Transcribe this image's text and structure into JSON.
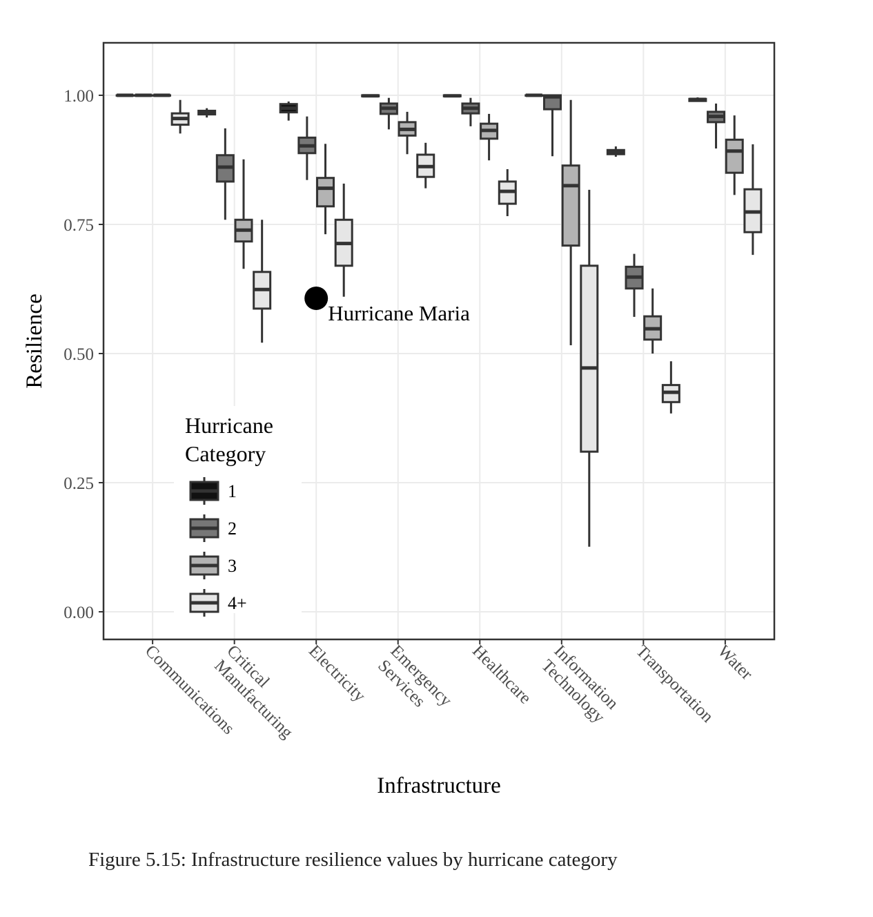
{
  "chart_data": {
    "type": "boxplot",
    "x_label": "Infrastructure",
    "y_label": "Resilience",
    "caption": "Figure 5.15: Infrastructure resilience values by hurricane category",
    "categories": [
      "Communications",
      "Critical Manufacturing",
      "Electricity",
      "Emergency Services",
      "Healthcare",
      "Information Technology",
      "Transportation",
      "Water"
    ],
    "ylim": [
      -0.0535,
      1.1016
    ],
    "yticks": [
      {
        "value": 0,
        "label": "0.00"
      },
      {
        "value": 0.25,
        "label": "0.25"
      },
      {
        "value": 0.5,
        "label": "0.50"
      },
      {
        "value": 0.75,
        "label": "0.75"
      },
      {
        "value": 1,
        "label": "1.00"
      }
    ],
    "grid": true,
    "legend_title": "Hurricane Category",
    "legend": "inside-lower-left",
    "series": [
      {
        "name": "1",
        "color": "#111111",
        "values": [
          {
            "low": 1,
            "q1": 1,
            "median": 1,
            "q3": 1,
            "high": 1
          },
          {
            "low": 0.957,
            "q1": 0.963,
            "median": 0.967,
            "q3": 0.97,
            "high": 0.975
          },
          {
            "low": 0.951,
            "q1": 0.967,
            "median": 0.975,
            "q3": 0.983,
            "high": 0.988
          },
          {
            "low": 0.998,
            "q1": 0.998,
            "median": 0.999,
            "q3": 1,
            "high": 1
          },
          {
            "low": 0.998,
            "q1": 0.998,
            "median": 0.999,
            "q3": 1,
            "high": 1
          },
          {
            "low": 1,
            "q1": 1,
            "median": 1,
            "q3": 1,
            "high": 1
          },
          {
            "low": 0.881,
            "q1": 0.886,
            "median": 0.89,
            "q3": 0.894,
            "high": 0.901
          },
          {
            "low": 0.988,
            "q1": 0.989,
            "median": 0.992,
            "q3": 0.993,
            "high": 0.996
          }
        ]
      },
      {
        "name": "2",
        "color": "#777777",
        "values": [
          {
            "low": 1,
            "q1": 1,
            "median": 1,
            "q3": 1,
            "high": 1
          },
          {
            "low": 0.759,
            "q1": 0.833,
            "median": 0.861,
            "q3": 0.884,
            "high": 0.936
          },
          {
            "low": 0.836,
            "q1": 0.888,
            "median": 0.902,
            "q3": 0.918,
            "high": 0.959
          },
          {
            "low": 0.934,
            "q1": 0.964,
            "median": 0.975,
            "q3": 0.984,
            "high": 0.995
          },
          {
            "low": 0.94,
            "q1": 0.965,
            "median": 0.975,
            "q3": 0.984,
            "high": 0.995
          },
          {
            "low": 0.882,
            "q1": 0.973,
            "median": 0.997,
            "q3": 1,
            "high": 1
          },
          {
            "low": 0.571,
            "q1": 0.626,
            "median": 0.648,
            "q3": 0.668,
            "high": 0.693
          },
          {
            "low": 0.897,
            "q1": 0.948,
            "median": 0.959,
            "q3": 0.968,
            "high": 0.984
          }
        ]
      },
      {
        "name": "3",
        "color": "#b3b3b3",
        "values": [
          {
            "low": 0.997,
            "q1": 1,
            "median": 1,
            "q3": 1,
            "high": 1
          },
          {
            "low": 0.664,
            "q1": 0.717,
            "median": 0.739,
            "q3": 0.759,
            "high": 0.876
          },
          {
            "low": 0.731,
            "q1": 0.785,
            "median": 0.82,
            "q3": 0.84,
            "high": 0.906
          },
          {
            "low": 0.886,
            "q1": 0.922,
            "median": 0.934,
            "q3": 0.948,
            "high": 0.968
          },
          {
            "low": 0.874,
            "q1": 0.916,
            "median": 0.932,
            "q3": 0.945,
            "high": 0.964
          },
          {
            "low": 0.516,
            "q1": 0.709,
            "median": 0.825,
            "q3": 0.864,
            "high": 0.991
          },
          {
            "low": 0.5,
            "q1": 0.527,
            "median": 0.548,
            "q3": 0.572,
            "high": 0.626
          },
          {
            "low": 0.807,
            "q1": 0.85,
            "median": 0.892,
            "q3": 0.914,
            "high": 0.961
          }
        ]
      },
      {
        "name": "4+",
        "color": "#e6e6e6",
        "values": [
          {
            "low": 0.926,
            "q1": 0.943,
            "median": 0.955,
            "q3": 0.965,
            "high": 0.991
          },
          {
            "low": 0.521,
            "q1": 0.587,
            "median": 0.624,
            "q3": 0.658,
            "high": 0.759
          },
          {
            "low": 0.61,
            "q1": 0.67,
            "median": 0.713,
            "q3": 0.759,
            "high": 0.829
          },
          {
            "low": 0.82,
            "q1": 0.842,
            "median": 0.862,
            "q3": 0.885,
            "high": 0.908
          },
          {
            "low": 0.766,
            "q1": 0.79,
            "median": 0.814,
            "q3": 0.833,
            "high": 0.857
          },
          {
            "low": 0.126,
            "q1": 0.31,
            "median": 0.472,
            "q3": 0.67,
            "high": 0.817
          },
          {
            "low": 0.384,
            "q1": 0.406,
            "median": 0.425,
            "q3": 0.439,
            "high": 0.485
          },
          {
            "low": 0.691,
            "q1": 0.735,
            "median": 0.774,
            "q3": 0.818,
            "high": 0.905
          }
        ]
      }
    ],
    "annotation": {
      "text": "Hurricane Maria",
      "category": 2,
      "value": 0.607,
      "color": "#000000"
    }
  }
}
